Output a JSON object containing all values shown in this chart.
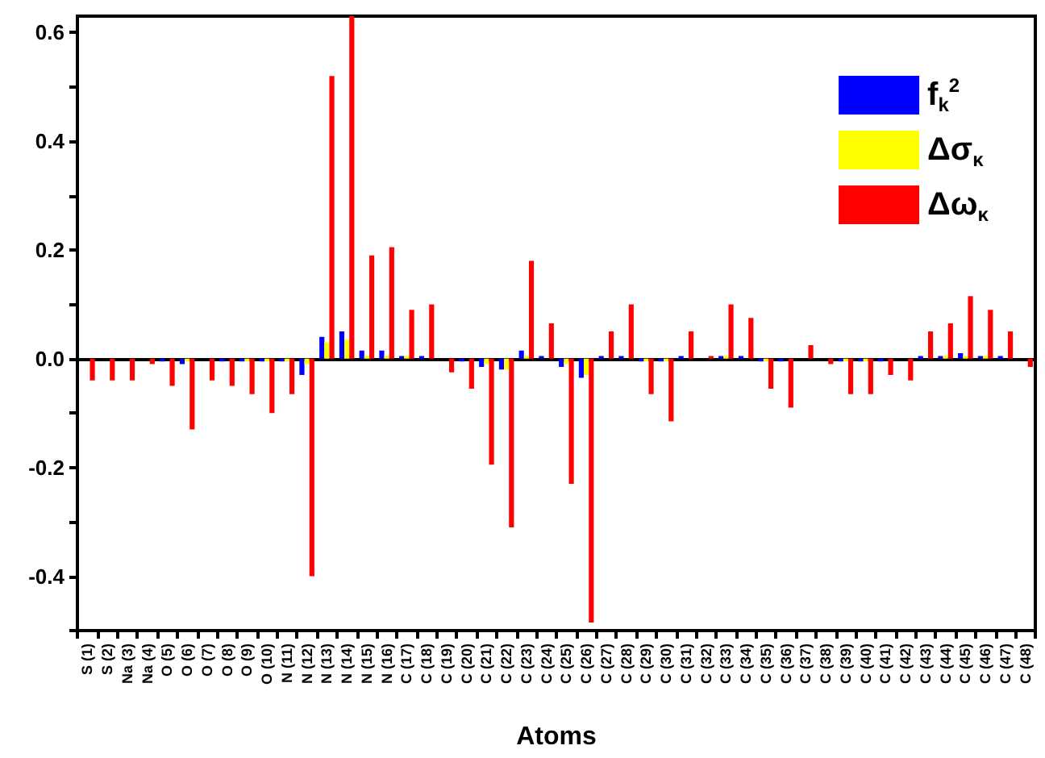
{
  "chart_data": {
    "type": "bar",
    "xlabel": "Atoms",
    "categories": [
      "S (1)",
      "S (2)",
      "Na (3)",
      "Na (4)",
      "O (5)",
      "O (6)",
      "O (7)",
      "O (8)",
      "O (9)",
      "O (10)",
      "N (11)",
      "N (12)",
      "N (13)",
      "N (14)",
      "N (15)",
      "N (16)",
      "C (17)",
      "C (18)",
      "C (19)",
      "C (20)",
      "C (21)",
      "C (22)",
      "C (23)",
      "C (24)",
      "C (25)",
      "C (26)",
      "C (27)",
      "C (28)",
      "C (29)",
      "C (30)",
      "C (31)",
      "C (32)",
      "C (33)",
      "C (34)",
      "C (35)",
      "C (36)",
      "C (37)",
      "C (38)",
      "C (39)",
      "C (40)",
      "C (41)",
      "C (42)",
      "C (43)",
      "C (44)",
      "C (45)",
      "C (46)",
      "C (47)",
      "C (48)"
    ],
    "series": [
      {
        "name": "f$_{k}$$^{2}$",
        "color": "#0000ff",
        "values": [
          0,
          0,
          0,
          0,
          -0.005,
          -0.01,
          0,
          -0.005,
          -0.005,
          -0.005,
          -0.005,
          -0.03,
          0.04,
          0.05,
          0.015,
          0.015,
          0.005,
          0.005,
          0,
          -0.005,
          -0.015,
          -0.02,
          0.015,
          0.005,
          -0.015,
          -0.035,
          0.005,
          0.005,
          -0.005,
          -0.005,
          0.005,
          0,
          0.005,
          0.005,
          -0.005,
          -0.005,
          0,
          0,
          -0.005,
          -0.005,
          -0.005,
          0,
          0.005,
          0.005,
          0.01,
          0.005,
          0.005,
          0
        ]
      },
      {
        "name": "Δσ$_{κ}$",
        "color": "#ffff00",
        "values": [
          0,
          0,
          0,
          0,
          0,
          -0.005,
          0,
          0,
          -0.005,
          -0.005,
          -0.005,
          -0.01,
          0.03,
          0.035,
          0.005,
          0.005,
          0.005,
          0,
          0,
          0,
          -0.01,
          -0.02,
          0.005,
          0,
          -0.01,
          -0.03,
          0,
          0,
          -0.005,
          -0.005,
          0,
          0,
          0.005,
          0,
          -0.005,
          0,
          0,
          0,
          -0.005,
          -0.005,
          0,
          0,
          0,
          0.005,
          0.005,
          0.005,
          0,
          0
        ]
      },
      {
        "name": "Δω$_{κ}$",
        "color": "#ff0000",
        "values": [
          -0.04,
          -0.04,
          -0.04,
          -0.01,
          -0.05,
          -0.13,
          -0.04,
          -0.05,
          -0.065,
          -0.1,
          -0.065,
          -0.4,
          0.52,
          0.63,
          0.19,
          0.205,
          0.09,
          0.1,
          -0.025,
          -0.055,
          -0.195,
          -0.31,
          0.18,
          0.065,
          -0.23,
          -0.485,
          0.05,
          0.1,
          -0.065,
          -0.115,
          0.05,
          0.005,
          0.1,
          0.075,
          -0.055,
          -0.09,
          0.025,
          -0.01,
          -0.065,
          -0.065,
          -0.03,
          -0.04,
          0.05,
          0.065,
          0.115,
          0.09,
          0.05,
          -0.015
        ]
      }
    ],
    "ylim": [
      -0.5,
      0.63
    ],
    "yticks": [
      {
        "value": -0.5,
        "label": null
      },
      {
        "value": -0.4,
        "label": "-0.4"
      },
      {
        "value": -0.3,
        "label": null
      },
      {
        "value": -0.2,
        "label": "-0.2"
      },
      {
        "value": -0.1,
        "label": null
      },
      {
        "value": 0,
        "label": "0.0"
      },
      {
        "value": 0.1,
        "label": null
      },
      {
        "value": 0.2,
        "label": "0.2"
      },
      {
        "value": 0.3,
        "label": null
      },
      {
        "value": 0.4,
        "label": "0.4"
      },
      {
        "value": 0.5,
        "label": null
      },
      {
        "value": 0.6,
        "label": "0.6"
      }
    ],
    "legend": "top right"
  }
}
